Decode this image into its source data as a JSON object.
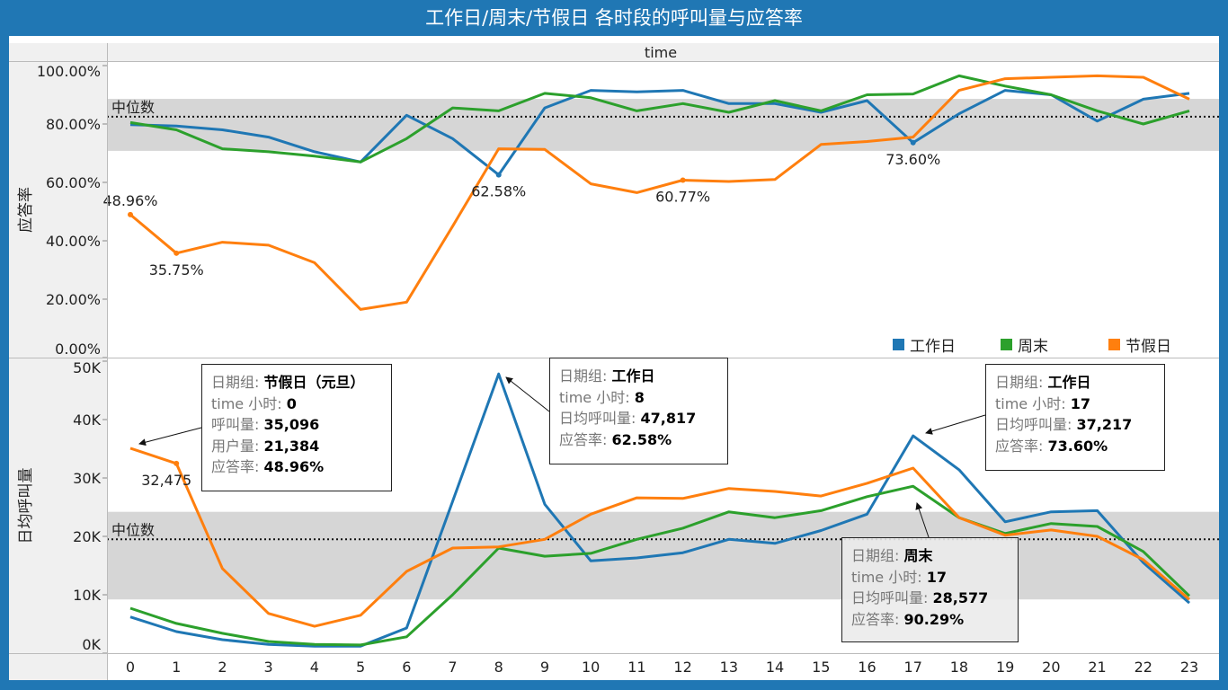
{
  "title": "工作日/周末/节假日 各时段的呼叫量与应答率",
  "colors": {
    "frame": "#2077b4",
    "工作日": "#1f77b4",
    "周末": "#2ca02c",
    "节假日": "#ff7f0e",
    "band": "#d6d6d6"
  },
  "legend": [
    {
      "label": "工作日",
      "color": "#1f77b4"
    },
    {
      "label": "周末",
      "color": "#2ca02c"
    },
    {
      "label": "节假日",
      "color": "#ff7f0e"
    }
  ],
  "tooltips": [
    {
      "rows": [
        [
          "日期组: ",
          "节假日（元旦）"
        ],
        [
          "time 小时: ",
          "0"
        ],
        [
          "呼叫量: ",
          "35,096"
        ],
        [
          "用户量:  ",
          "21,384"
        ],
        [
          "应答率: ",
          "48.96%"
        ]
      ]
    },
    {
      "rows": [
        [
          "日期组: ",
          "工作日"
        ],
        [
          "time 小时: ",
          "8"
        ],
        [
          "日均呼叫量: ",
          "47,817"
        ],
        [
          "应答率: ",
          "62.58%"
        ]
      ]
    },
    {
      "rows": [
        [
          "日期组: ",
          "工作日"
        ],
        [
          "time 小时: ",
          "17"
        ],
        [
          "日均呼叫量: ",
          "37,217"
        ],
        [
          "应答率: ",
          "73.60%"
        ]
      ]
    },
    {
      "rows": [
        [
          "日期组: ",
          "周末"
        ],
        [
          "time 小时: ",
          "17"
        ],
        [
          "日均呼叫量: ",
          "28,577"
        ],
        [
          "应答率: ",
          "90.29%"
        ]
      ]
    }
  ],
  "chart_data": [
    {
      "type": "line",
      "column_header": "time",
      "ylabel": "应答率",
      "ylim": [
        0,
        100
      ],
      "yticks": [
        "0.00%",
        "20.00%",
        "40.00%",
        "60.00%",
        "80.00%",
        "100.00%"
      ],
      "x": [
        0,
        1,
        2,
        3,
        4,
        5,
        6,
        7,
        8,
        9,
        10,
        11,
        12,
        13,
        14,
        15,
        16,
        17,
        18,
        19,
        20,
        21,
        22,
        23
      ],
      "reference_line": {
        "label": "中位数",
        "value": 82.5,
        "band": [
          70.8,
          88.6
        ]
      },
      "series": [
        {
          "name": "工作日",
          "values": [
            79.8,
            79.3,
            78,
            75.5,
            70.5,
            67,
            83,
            75,
            62.58,
            85.5,
            91.5,
            91,
            91.5,
            87,
            87,
            84,
            88,
            73.6,
            83.5,
            91.5,
            90,
            81,
            88.5,
            90.5
          ]
        },
        {
          "name": "周末",
          "values": [
            80.5,
            78,
            71.5,
            70.5,
            69,
            67,
            75,
            85.5,
            84.5,
            90.5,
            89,
            84.5,
            87,
            84,
            88,
            84.5,
            90,
            90.29,
            96.5,
            93,
            90,
            84.5,
            80,
            84.5
          ]
        },
        {
          "name": "节假日",
          "values": [
            48.96,
            35.75,
            39.5,
            38.5,
            32.5,
            16.5,
            19,
            45,
            71.5,
            71.3,
            59.5,
            56.5,
            60.77,
            60.3,
            61,
            73,
            74,
            75.5,
            91.5,
            95.5,
            96,
            96.5,
            96,
            88.5
          ]
        }
      ],
      "annotations": [
        {
          "series": "节假日",
          "x": 0,
          "text": "48.96%"
        },
        {
          "series": "节假日",
          "x": 1,
          "text": "35.75%"
        },
        {
          "series": "工作日",
          "x": 8,
          "text": "62.58%"
        },
        {
          "series": "节假日",
          "x": 12,
          "text": "60.77%"
        },
        {
          "series": "工作日",
          "x": 17,
          "text": "73.60%"
        }
      ]
    },
    {
      "type": "line",
      "ylabel": "日均呼叫量",
      "ylim": [
        0,
        50
      ],
      "yunit": "K",
      "yticks": [
        "0K",
        "10K",
        "20K",
        "30K",
        "40K",
        "50K"
      ],
      "xticks": [
        "0",
        "1",
        "2",
        "3",
        "4",
        "5",
        "6",
        "7",
        "8",
        "9",
        "10",
        "11",
        "12",
        "13",
        "14",
        "15",
        "16",
        "17",
        "18",
        "19",
        "20",
        "21",
        "22",
        "23"
      ],
      "x": [
        0,
        1,
        2,
        3,
        4,
        5,
        6,
        7,
        8,
        9,
        10,
        11,
        12,
        13,
        14,
        15,
        16,
        17,
        18,
        19,
        20,
        21,
        22,
        23
      ],
      "reference_line": {
        "label": "中位数",
        "value": 19.5,
        "band": [
          9.2,
          24.2
        ]
      },
      "series": [
        {
          "name": "工作日",
          "values": [
            6.2,
            3.7,
            2.3,
            1.5,
            1.2,
            1.2,
            4.3,
            26,
            47.817,
            25.5,
            15.8,
            16.3,
            17.2,
            19.5,
            18.8,
            21,
            23.8,
            37.217,
            31.4,
            22.5,
            24.2,
            24.4,
            15.5,
            8.6
          ]
        },
        {
          "name": "周末",
          "values": [
            7.7,
            5.1,
            3.4,
            2,
            1.5,
            1.4,
            2.8,
            10,
            18,
            16.6,
            17.1,
            19.5,
            21.4,
            24.2,
            23.2,
            24.4,
            26.8,
            28.577,
            23.2,
            20.5,
            22.2,
            21.7,
            17.4,
            9.8
          ]
        },
        {
          "name": "节假日",
          "values": [
            35.096,
            32.475,
            14.5,
            6.8,
            4.6,
            6.5,
            14,
            18,
            18.2,
            19.5,
            23.8,
            26.6,
            26.5,
            28.2,
            27.7,
            26.9,
            29.1,
            31.7,
            23.2,
            20.2,
            21.1,
            20,
            16,
            9.2
          ]
        }
      ],
      "annotations": [
        {
          "series": "节假日",
          "x": 1,
          "text": "32,475"
        }
      ]
    }
  ]
}
